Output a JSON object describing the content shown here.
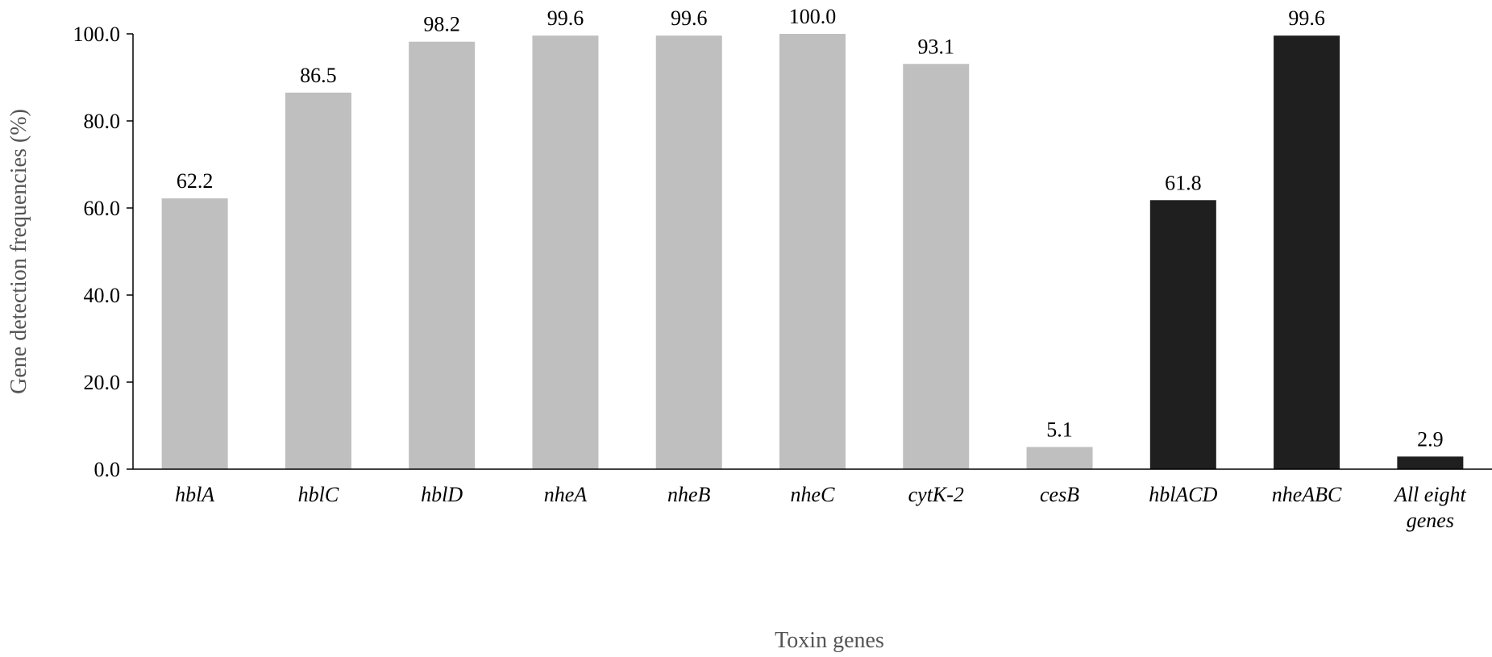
{
  "chart_data": {
    "type": "bar",
    "title": "",
    "xlabel": "Toxin genes",
    "ylabel": "Gene detection frequencies (%)",
    "ylim": [
      0,
      100
    ],
    "yticks": [
      "0.0",
      "20.0",
      "40.0",
      "60.0",
      "80.0",
      "100.0"
    ],
    "grid": false,
    "legend": "none",
    "categories": [
      [
        "hblA"
      ],
      [
        "hblC"
      ],
      [
        "hblD"
      ],
      [
        "nheA"
      ],
      [
        "nheB"
      ],
      [
        "nheC"
      ],
      [
        "cytK-2"
      ],
      [
        "cesB"
      ],
      [
        "hblACD"
      ],
      [
        "nheABC"
      ],
      [
        "All eight",
        "genes"
      ]
    ],
    "values": [
      62.2,
      86.5,
      98.2,
      99.6,
      99.6,
      100.0,
      93.1,
      5.1,
      61.8,
      99.6,
      2.9
    ],
    "data_labels": [
      "62.2",
      "86.5",
      "98.2",
      "99.6",
      "99.6",
      "100.0",
      "93.1",
      "5.1",
      "61.8",
      "99.6",
      "2.9"
    ],
    "bar_colors": [
      "#bfbfbf",
      "#bfbfbf",
      "#bfbfbf",
      "#bfbfbf",
      "#bfbfbf",
      "#bfbfbf",
      "#bfbfbf",
      "#bfbfbf",
      "#1f1f1f",
      "#1f1f1f",
      "#1f1f1f"
    ],
    "axis_color": "#000000"
  }
}
